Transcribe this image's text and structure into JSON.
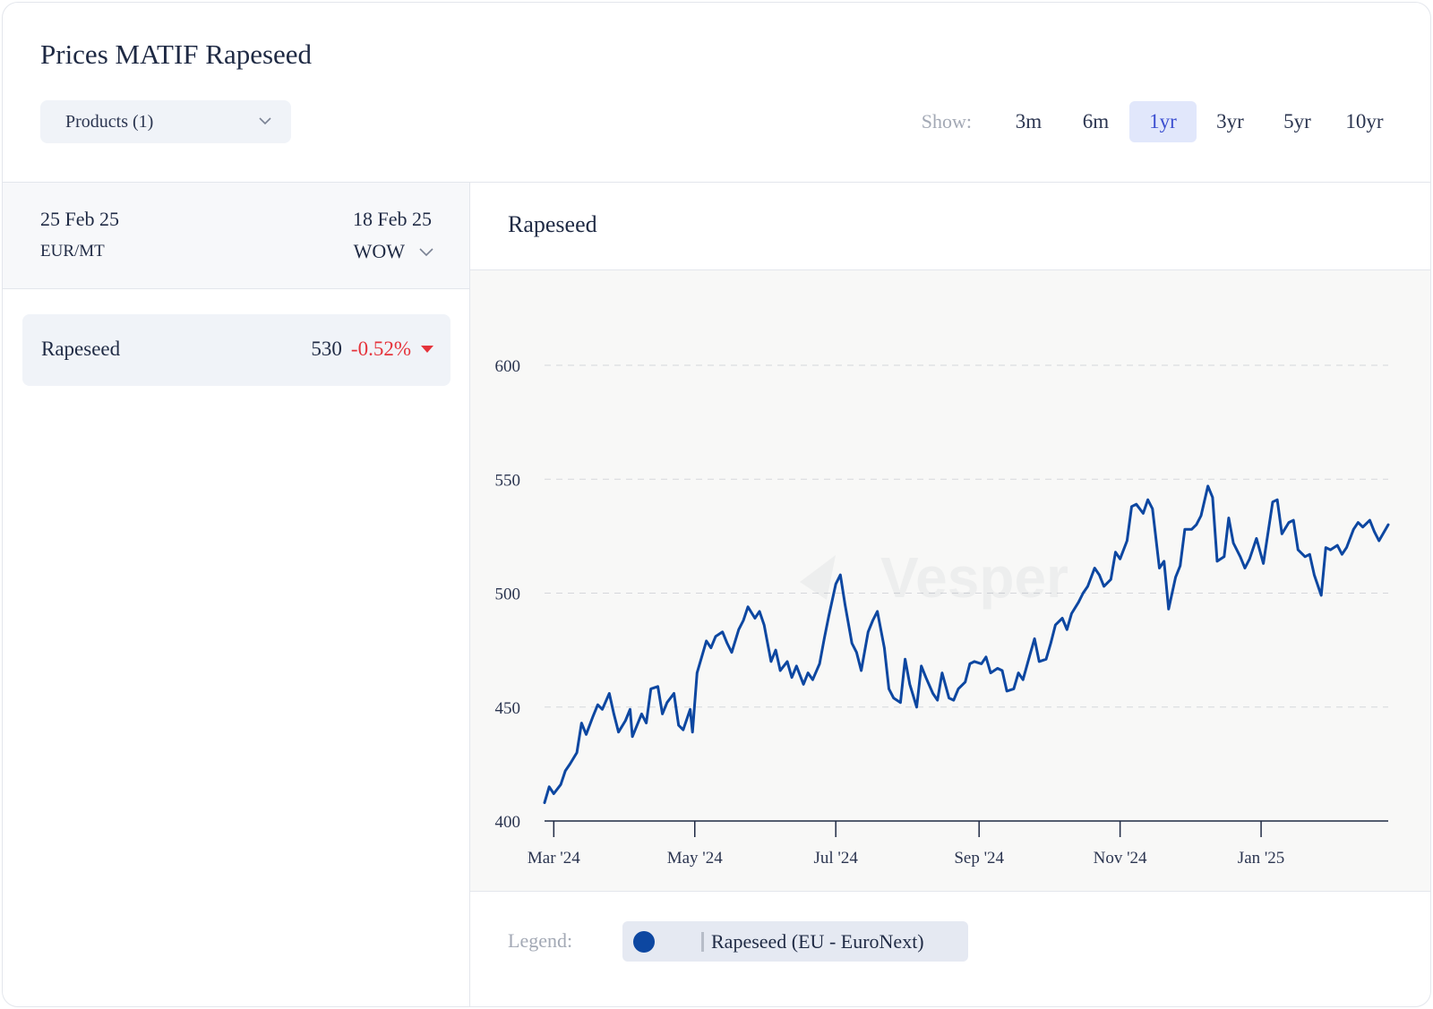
{
  "header": {
    "title": "Prices MATIF Rapeseed"
  },
  "products_dropdown": {
    "label": "Products (1)"
  },
  "range_selector": {
    "label": "Show:",
    "options": [
      "3m",
      "6m",
      "1yr",
      "3yr",
      "5yr",
      "10yr"
    ],
    "active": "1yr"
  },
  "left_panel": {
    "date_current": "25 Feb 25",
    "date_compare": "18 Feb 25",
    "unit": "EUR/MT",
    "compare_mode": "WOW",
    "items": [
      {
        "name": "Rapeseed",
        "value": "530",
        "change": "-0.52%"
      }
    ]
  },
  "chart_panel": {
    "title": "Rapeseed"
  },
  "legend": {
    "label": "Legend:",
    "entries": [
      "Rapeseed (EU - EuroNext)"
    ]
  },
  "colors": {
    "line": "#0d47a1",
    "negative": "#e5333b",
    "active_bg": "#e1e7fb",
    "active_text": "#3b4ed0"
  },
  "chart_data": {
    "type": "line",
    "title": "Rapeseed",
    "ylim": [
      400,
      600
    ],
    "yticks": [
      400,
      450,
      500,
      550,
      600
    ],
    "x_range": [
      "2024-02-26",
      "2025-02-25"
    ],
    "xticks": [
      {
        "date": "2024-03-01",
        "label": "Mar '24"
      },
      {
        "date": "2024-05-01",
        "label": "May '24"
      },
      {
        "date": "2024-07-01",
        "label": "Jul '24"
      },
      {
        "date": "2024-09-01",
        "label": "Sep '24"
      },
      {
        "date": "2024-11-01",
        "label": "Nov '24"
      },
      {
        "date": "2025-01-01",
        "label": "Jan '25"
      }
    ],
    "grid": true,
    "series": [
      {
        "name": "Rapeseed (EU - EuroNext)",
        "points": [
          [
            "2024-02-26",
            408
          ],
          [
            "2024-02-28",
            415
          ],
          [
            "2024-03-01",
            412
          ],
          [
            "2024-03-04",
            416
          ],
          [
            "2024-03-06",
            422
          ],
          [
            "2024-03-08",
            425
          ],
          [
            "2024-03-11",
            430
          ],
          [
            "2024-03-13",
            443
          ],
          [
            "2024-03-15",
            438
          ],
          [
            "2024-03-18",
            446
          ],
          [
            "2024-03-20",
            451
          ],
          [
            "2024-03-22",
            449
          ],
          [
            "2024-03-25",
            456
          ],
          [
            "2024-03-27",
            447
          ],
          [
            "2024-03-29",
            439
          ],
          [
            "2024-04-01",
            444
          ],
          [
            "2024-04-03",
            449
          ],
          [
            "2024-04-04",
            437
          ],
          [
            "2024-04-08",
            447
          ],
          [
            "2024-04-10",
            443
          ],
          [
            "2024-04-12",
            458
          ],
          [
            "2024-04-15",
            459
          ],
          [
            "2024-04-17",
            447
          ],
          [
            "2024-04-19",
            452
          ],
          [
            "2024-04-22",
            456
          ],
          [
            "2024-04-24",
            442
          ],
          [
            "2024-04-26",
            440
          ],
          [
            "2024-04-29",
            449
          ],
          [
            "2024-04-30",
            439
          ],
          [
            "2024-05-02",
            465
          ],
          [
            "2024-05-06",
            479
          ],
          [
            "2024-05-08",
            476
          ],
          [
            "2024-05-10",
            481
          ],
          [
            "2024-05-13",
            483
          ],
          [
            "2024-05-15",
            478
          ],
          [
            "2024-05-17",
            474
          ],
          [
            "2024-05-20",
            484
          ],
          [
            "2024-05-22",
            488
          ],
          [
            "2024-05-24",
            494
          ],
          [
            "2024-05-27",
            489
          ],
          [
            "2024-05-29",
            492
          ],
          [
            "2024-05-31",
            486
          ],
          [
            "2024-06-03",
            470
          ],
          [
            "2024-06-05",
            475
          ],
          [
            "2024-06-07",
            466
          ],
          [
            "2024-06-10",
            470
          ],
          [
            "2024-06-12",
            463
          ],
          [
            "2024-06-14",
            468
          ],
          [
            "2024-06-17",
            460
          ],
          [
            "2024-06-19",
            465
          ],
          [
            "2024-06-21",
            462
          ],
          [
            "2024-06-24",
            469
          ],
          [
            "2024-06-26",
            480
          ],
          [
            "2024-06-28",
            490
          ],
          [
            "2024-07-01",
            504
          ],
          [
            "2024-07-03",
            508
          ],
          [
            "2024-07-05",
            495
          ],
          [
            "2024-07-08",
            478
          ],
          [
            "2024-07-10",
            474
          ],
          [
            "2024-07-12",
            466
          ],
          [
            "2024-07-15",
            483
          ],
          [
            "2024-07-17",
            488
          ],
          [
            "2024-07-19",
            492
          ],
          [
            "2024-07-22",
            476
          ],
          [
            "2024-07-24",
            458
          ],
          [
            "2024-07-26",
            454
          ],
          [
            "2024-07-29",
            452
          ],
          [
            "2024-07-31",
            471
          ],
          [
            "2024-08-02",
            460
          ],
          [
            "2024-08-05",
            450
          ],
          [
            "2024-08-07",
            468
          ],
          [
            "2024-08-09",
            463
          ],
          [
            "2024-08-12",
            456
          ],
          [
            "2024-08-14",
            453
          ],
          [
            "2024-08-16",
            465
          ],
          [
            "2024-08-19",
            454
          ],
          [
            "2024-08-21",
            453
          ],
          [
            "2024-08-23",
            458
          ],
          [
            "2024-08-26",
            461
          ],
          [
            "2024-08-28",
            469
          ],
          [
            "2024-08-30",
            470
          ],
          [
            "2024-09-02",
            469
          ],
          [
            "2024-09-04",
            472
          ],
          [
            "2024-09-06",
            465
          ],
          [
            "2024-09-09",
            467
          ],
          [
            "2024-09-11",
            466
          ],
          [
            "2024-09-13",
            457
          ],
          [
            "2024-09-16",
            458
          ],
          [
            "2024-09-18",
            465
          ],
          [
            "2024-09-20",
            462
          ],
          [
            "2024-09-23",
            473
          ],
          [
            "2024-09-25",
            480
          ],
          [
            "2024-09-27",
            470
          ],
          [
            "2024-09-30",
            471
          ],
          [
            "2024-10-02",
            478
          ],
          [
            "2024-10-04",
            486
          ],
          [
            "2024-10-07",
            489
          ],
          [
            "2024-10-09",
            484
          ],
          [
            "2024-10-11",
            491
          ],
          [
            "2024-10-14",
            496
          ],
          [
            "2024-10-16",
            500
          ],
          [
            "2024-10-18",
            503
          ],
          [
            "2024-10-21",
            511
          ],
          [
            "2024-10-23",
            508
          ],
          [
            "2024-10-25",
            503
          ],
          [
            "2024-10-28",
            506
          ],
          [
            "2024-10-30",
            518
          ],
          [
            "2024-11-01",
            515
          ],
          [
            "2024-11-04",
            523
          ],
          [
            "2024-11-06",
            538
          ],
          [
            "2024-11-08",
            539
          ],
          [
            "2024-11-11",
            535
          ],
          [
            "2024-11-13",
            541
          ],
          [
            "2024-11-15",
            537
          ],
          [
            "2024-11-18",
            511
          ],
          [
            "2024-11-20",
            514
          ],
          [
            "2024-11-22",
            493
          ],
          [
            "2024-11-25",
            507
          ],
          [
            "2024-11-27",
            512
          ],
          [
            "2024-11-29",
            528
          ],
          [
            "2024-12-02",
            528
          ],
          [
            "2024-12-04",
            530
          ],
          [
            "2024-12-06",
            534
          ],
          [
            "2024-12-09",
            547
          ],
          [
            "2024-12-11",
            542
          ],
          [
            "2024-12-13",
            514
          ],
          [
            "2024-12-16",
            516
          ],
          [
            "2024-12-18",
            533
          ],
          [
            "2024-12-20",
            522
          ],
          [
            "2024-12-23",
            516
          ],
          [
            "2024-12-25",
            511
          ],
          [
            "2024-12-27",
            515
          ],
          [
            "2024-12-30",
            524
          ],
          [
            "2025-01-02",
            513
          ],
          [
            "2025-01-06",
            540
          ],
          [
            "2025-01-08",
            541
          ],
          [
            "2025-01-10",
            526
          ],
          [
            "2025-01-13",
            531
          ],
          [
            "2025-01-15",
            532
          ],
          [
            "2025-01-17",
            519
          ],
          [
            "2025-01-20",
            516
          ],
          [
            "2025-01-22",
            517
          ],
          [
            "2025-01-24",
            508
          ],
          [
            "2025-01-27",
            499
          ],
          [
            "2025-01-29",
            520
          ],
          [
            "2025-01-31",
            519
          ],
          [
            "2025-02-03",
            521
          ],
          [
            "2025-02-05",
            517
          ],
          [
            "2025-02-07",
            520
          ],
          [
            "2025-02-10",
            528
          ],
          [
            "2025-02-12",
            531
          ],
          [
            "2025-02-14",
            529
          ],
          [
            "2025-02-17",
            532
          ],
          [
            "2025-02-19",
            527
          ],
          [
            "2025-02-21",
            523
          ],
          [
            "2025-02-25",
            530
          ]
        ]
      }
    ]
  }
}
